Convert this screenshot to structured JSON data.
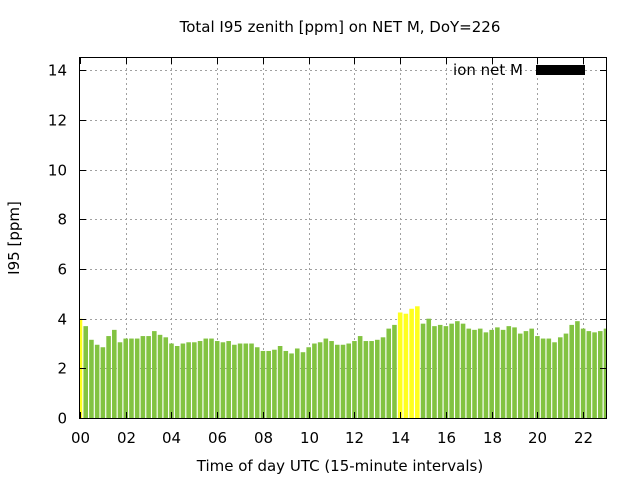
{
  "chart_data": {
    "type": "bar",
    "title": "Total I95 zenith [ppm] on NET M, DoY=226",
    "xlabel": "Time of day UTC (15-minute intervals)",
    "ylabel": "I95 [ppm]",
    "xlim": [
      0,
      23
    ],
    "ylim": [
      0,
      14.5
    ],
    "x_ticks": [
      0,
      2,
      4,
      6,
      8,
      10,
      12,
      14,
      16,
      18,
      20,
      22
    ],
    "x_tick_labels": [
      "00",
      "02",
      "04",
      "06",
      "08",
      "10",
      "12",
      "14",
      "16",
      "18",
      "20",
      "22"
    ],
    "y_ticks": [
      0,
      2,
      4,
      6,
      8,
      10,
      12,
      14
    ],
    "y_tick_labels": [
      "0",
      "2",
      "4",
      "6",
      "8",
      "10",
      "12",
      "14"
    ],
    "grid": true,
    "legend_position": "top-right",
    "bar_interval_hours": 0.25,
    "colors": {
      "normal": "#82c341",
      "highlight": "#ffff1e",
      "legend": "#000000"
    },
    "series": [
      {
        "name": "ion net M",
        "x": [
          0.0,
          0.25,
          0.5,
          0.75,
          1.0,
          1.25,
          1.5,
          1.75,
          2.0,
          2.25,
          2.5,
          2.75,
          3.0,
          3.25,
          3.5,
          3.75,
          4.0,
          4.25,
          4.5,
          4.75,
          5.0,
          5.25,
          5.5,
          5.75,
          6.0,
          6.25,
          6.5,
          6.75,
          7.0,
          7.25,
          7.5,
          7.75,
          8.0,
          8.25,
          8.5,
          8.75,
          9.0,
          9.25,
          9.5,
          9.75,
          10.0,
          10.25,
          10.5,
          10.75,
          11.0,
          11.25,
          11.5,
          11.75,
          12.0,
          12.25,
          12.5,
          12.75,
          13.0,
          13.25,
          13.5,
          13.75,
          14.0,
          14.25,
          14.5,
          14.75,
          15.0,
          15.25,
          15.5,
          15.75,
          16.0,
          16.25,
          16.5,
          16.75,
          17.0,
          17.25,
          17.5,
          17.75,
          18.0,
          18.25,
          18.5,
          18.75,
          19.0,
          19.25,
          19.5,
          19.75,
          20.0,
          20.25,
          20.5,
          20.75,
          21.0,
          21.25,
          21.5,
          21.75,
          22.0,
          22.25,
          22.5,
          22.75,
          23.0
        ],
        "values": [
          4.0,
          3.7,
          3.15,
          2.95,
          2.85,
          3.3,
          3.55,
          3.05,
          3.2,
          3.2,
          3.2,
          3.3,
          3.3,
          3.5,
          3.35,
          3.25,
          3.0,
          2.9,
          3.0,
          3.05,
          3.05,
          3.1,
          3.2,
          3.2,
          3.1,
          3.05,
          3.1,
          2.95,
          3.0,
          3.0,
          3.0,
          2.85,
          2.7,
          2.7,
          2.75,
          2.9,
          2.7,
          2.6,
          2.8,
          2.65,
          2.85,
          3.0,
          3.05,
          3.2,
          3.1,
          2.95,
          2.95,
          3.0,
          3.1,
          3.3,
          3.1,
          3.1,
          3.15,
          3.25,
          3.6,
          3.75,
          4.25,
          4.2,
          4.4,
          4.5,
          3.8,
          4.0,
          3.7,
          3.75,
          3.7,
          3.8,
          3.9,
          3.8,
          3.6,
          3.55,
          3.6,
          3.45,
          3.55,
          3.65,
          3.55,
          3.7,
          3.65,
          3.4,
          3.5,
          3.6,
          3.3,
          3.2,
          3.2,
          3.05,
          3.25,
          3.4,
          3.75,
          3.9,
          3.6,
          3.5,
          3.45,
          3.5,
          3.6
        ],
        "highlight": [
          true,
          false,
          false,
          false,
          false,
          false,
          false,
          false,
          false,
          false,
          false,
          false,
          false,
          false,
          false,
          false,
          false,
          false,
          false,
          false,
          false,
          false,
          false,
          false,
          false,
          false,
          false,
          false,
          false,
          false,
          false,
          false,
          false,
          false,
          false,
          false,
          false,
          false,
          false,
          false,
          false,
          false,
          false,
          false,
          false,
          false,
          false,
          false,
          false,
          false,
          false,
          false,
          false,
          false,
          false,
          false,
          true,
          true,
          true,
          true,
          false,
          false,
          false,
          false,
          false,
          false,
          false,
          false,
          false,
          false,
          false,
          false,
          false,
          false,
          false,
          false,
          false,
          false,
          false,
          false,
          false,
          false,
          false,
          false,
          false,
          false,
          false,
          false,
          false,
          false,
          false,
          false,
          false
        ]
      }
    ]
  }
}
